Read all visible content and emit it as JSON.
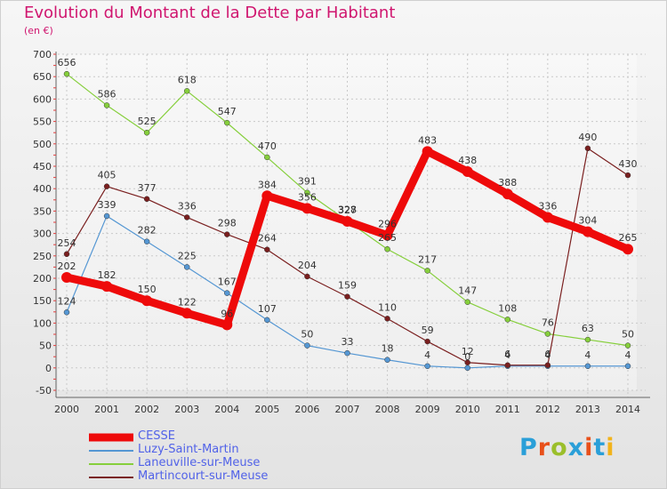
{
  "header": {
    "title": "Evolution du Montant de la Dette par Habitant",
    "unit": "(en €)"
  },
  "brand": {
    "text": "Proxiti",
    "letter_colors": [
      "#2a9fd8",
      "#e8501a",
      "#9bbf2b",
      "#2a9fd8",
      "#e8501a",
      "#2a9fd8",
      "#f2b31b"
    ]
  },
  "chart_data": {
    "type": "line",
    "title": "Evolution du Montant de la Dette par Habitant",
    "subtitle": "(en €)",
    "x": [
      "2000",
      "2001",
      "2002",
      "2003",
      "2004",
      "2005",
      "2006",
      "2007",
      "2008",
      "2009",
      "2010",
      "2011",
      "2012",
      "2013",
      "2014"
    ],
    "y_ticks": [
      -50,
      0,
      50,
      100,
      150,
      200,
      250,
      300,
      350,
      400,
      450,
      500,
      550,
      600,
      650,
      700
    ],
    "ylim": [
      -50,
      700
    ],
    "grid": true,
    "legend_position": "bottom-left",
    "series": [
      {
        "name": "CESSE",
        "color": "#ee0a0a",
        "values": [
          202,
          182,
          150,
          122,
          96,
          384,
          356,
          327,
          296,
          483,
          438,
          388,
          336,
          304,
          265
        ],
        "labels": [
          "202",
          "182",
          "150",
          "122",
          "96",
          "384",
          "356",
          "327",
          "296",
          "483",
          "438",
          "388",
          "336",
          "304",
          "265"
        ]
      },
      {
        "name": "Luzy-Saint-Martin",
        "color": "#5597d3",
        "values": [
          124,
          339,
          282,
          225,
          167,
          107,
          50,
          33,
          18,
          4,
          0,
          4,
          4,
          4,
          4
        ],
        "labels": [
          "124",
          "339",
          "282",
          "225",
          "167",
          "107",
          "50",
          "33",
          "18",
          "4",
          "0",
          "4",
          "4",
          "4",
          "4"
        ]
      },
      {
        "name": "Laneuville-sur-Meuse",
        "color": "#86cf3c",
        "values": [
          656,
          586,
          525,
          618,
          547,
          470,
          391,
          328,
          265,
          217,
          147,
          108,
          76,
          63,
          50
        ],
        "labels": [
          "656",
          "586",
          "525",
          "618",
          "547",
          "470",
          "391",
          "328",
          "265",
          "217",
          "147",
          "108",
          "76",
          "63",
          "50"
        ]
      },
      {
        "name": "Martincourt-sur-Meuse",
        "color": "#7a1f1f",
        "values": [
          254,
          405,
          377,
          336,
          298,
          264,
          204,
          159,
          110,
          59,
          12,
          6,
          6,
          490,
          430
        ],
        "labels": [
          "254",
          "405",
          "377",
          "336",
          "298",
          "264",
          "204",
          "159",
          "110",
          "59",
          "12",
          "6",
          "6",
          "490",
          "430"
        ]
      }
    ]
  }
}
